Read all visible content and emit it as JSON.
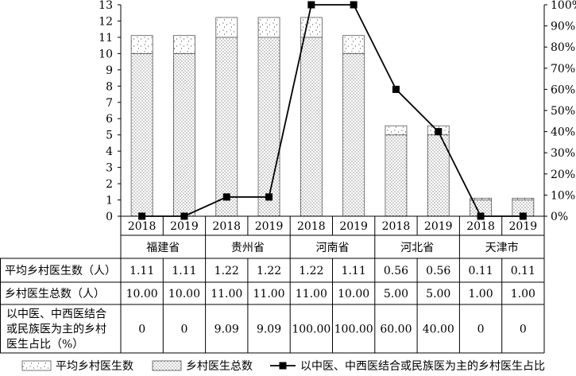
{
  "chart_data": {
    "type": "bar",
    "groups": [
      "福建省",
      "贵州省",
      "河南省",
      "河北省",
      "天津市"
    ],
    "years": [
      "2018",
      "2019"
    ],
    "categories": [
      "福建省 2018",
      "福建省 2019",
      "贵州省 2018",
      "贵州省 2019",
      "河南省 2018",
      "河南省 2019",
      "河北省 2018",
      "河北省 2019",
      "天津市 2018",
      "天津市 2019"
    ],
    "series": [
      {
        "name": "平均乡村医生数",
        "row_label": "平均乡村医生数（人）",
        "kind": "stacked-bar",
        "values": [
          1.11,
          1.11,
          1.22,
          1.22,
          1.22,
          1.11,
          0.56,
          0.56,
          0.11,
          0.11
        ],
        "display": [
          "1.11",
          "1.11",
          "1.22",
          "1.22",
          "1.22",
          "1.11",
          "0.56",
          "0.56",
          "0.11",
          "0.11"
        ]
      },
      {
        "name": "乡村医生总数",
        "row_label": "乡村医生总数（人）",
        "kind": "stacked-bar",
        "values": [
          10,
          10,
          11,
          11,
          11,
          10,
          5,
          5,
          1,
          1
        ],
        "display": [
          "10.00",
          "10.00",
          "11.00",
          "11.00",
          "11.00",
          "10.00",
          "5.00",
          "5.00",
          "1.00",
          "1.00"
        ]
      },
      {
        "name": "以中医、中西医结合或民族医为主的乡村医生占比",
        "row_label": [
          "以中医、中西医结合",
          "或民族医为主的乡村",
          "医生占比（%）"
        ],
        "kind": "line",
        "axis": "right",
        "values": [
          0,
          0,
          9.09,
          9.09,
          100,
          100,
          60,
          40,
          0,
          0
        ],
        "display": [
          "0",
          "0",
          "9.09",
          "9.09",
          "100.00",
          "100.00",
          "60.00",
          "40.00",
          "0",
          "0"
        ]
      }
    ],
    "y_left": {
      "min": 0,
      "max": 13,
      "step": 1,
      "ticks": [
        "0",
        "1",
        "2",
        "3",
        "4",
        "5",
        "6",
        "7",
        "8",
        "9",
        "10",
        "11",
        "12",
        "13"
      ]
    },
    "y_right": {
      "min": 0,
      "max": 100,
      "step": 10,
      "ticks": [
        "0%",
        "10%",
        "20%",
        "30%",
        "40%",
        "50%",
        "60%",
        "70%",
        "80%",
        "90%",
        "100%"
      ]
    },
    "grid": false,
    "legend_position": "bottom",
    "colors": {
      "line": "#000000",
      "bar_border": "#555555",
      "dot": "#000000"
    }
  }
}
